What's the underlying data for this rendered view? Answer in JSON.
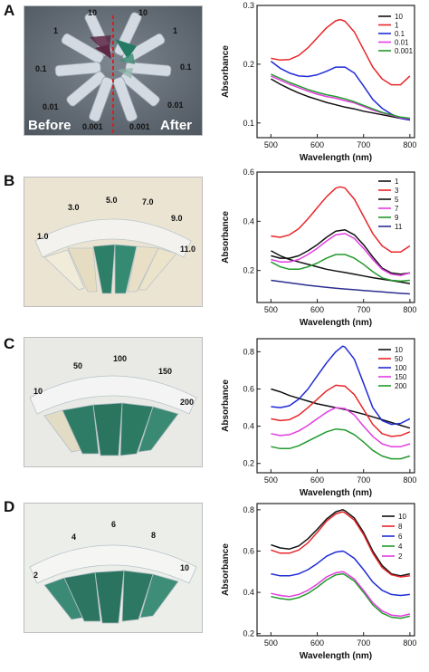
{
  "panels": [
    {
      "letter": "A",
      "photo": {
        "tube_labels": [
          "10",
          "1",
          "0.1",
          "0.01",
          "0.001",
          "10",
          "1",
          "0.1",
          "0.01",
          "0.001"
        ],
        "before_label": "Before",
        "after_label": "After"
      }
    },
    {
      "letter": "B",
      "photo": {
        "tube_labels": [
          "1.0",
          "3.0",
          "5.0",
          "7.0",
          "9.0",
          "11.0"
        ]
      }
    },
    {
      "letter": "C",
      "photo": {
        "tube_labels": [
          "10",
          "50",
          "100",
          "150",
          "200"
        ]
      }
    },
    {
      "letter": "D",
      "photo": {
        "tube_labels": [
          "2",
          "4",
          "6",
          "8",
          "10"
        ]
      }
    }
  ],
  "colors": {
    "black": "#111111",
    "red": "#e8262a",
    "blue": "#1f2bd6",
    "magenta": "#e23de0",
    "green": "#229a2d",
    "navy": "#2b2f8f",
    "solution_green": "#1f7a63",
    "solution_purple": "#5a2140",
    "marker_red": "#d42020"
  },
  "chart_data": [
    {
      "type": "line",
      "xlabel": "Wavelength (nm)",
      "ylabel": "Absorbance",
      "xlim": [
        470,
        810
      ],
      "ylim": [
        0.075,
        0.3
      ],
      "xticks": [
        500,
        600,
        700,
        800
      ],
      "yticks": [
        0.1,
        0.2,
        0.3
      ],
      "legend_position": "top-right",
      "series": [
        {
          "name": "10",
          "color": "#111111",
          "x": [
            500,
            520,
            540,
            560,
            580,
            600,
            620,
            640,
            660,
            680,
            700,
            720,
            740,
            760,
            780,
            800
          ],
          "y": [
            0.175,
            0.166,
            0.158,
            0.151,
            0.145,
            0.14,
            0.135,
            0.131,
            0.127,
            0.124,
            0.12,
            0.117,
            0.114,
            0.111,
            0.108,
            0.105
          ]
        },
        {
          "name": "1",
          "color": "#e8262a",
          "x": [
            500,
            520,
            540,
            560,
            580,
            600,
            620,
            640,
            650,
            660,
            680,
            700,
            720,
            740,
            760,
            780,
            800
          ],
          "y": [
            0.21,
            0.207,
            0.208,
            0.215,
            0.228,
            0.245,
            0.262,
            0.274,
            0.276,
            0.273,
            0.255,
            0.225,
            0.195,
            0.175,
            0.165,
            0.165,
            0.18
          ]
        },
        {
          "name": "0.1",
          "color": "#1f2bd6",
          "x": [
            500,
            520,
            540,
            560,
            580,
            600,
            620,
            640,
            660,
            680,
            700,
            720,
            740,
            760,
            780,
            800
          ],
          "y": [
            0.205,
            0.193,
            0.185,
            0.18,
            0.179,
            0.182,
            0.188,
            0.195,
            0.195,
            0.185,
            0.163,
            0.14,
            0.125,
            0.115,
            0.108,
            0.105
          ]
        },
        {
          "name": "0.01",
          "color": "#e23de0",
          "x": [
            500,
            520,
            540,
            560,
            580,
            600,
            620,
            640,
            660,
            680,
            700,
            720,
            740,
            760,
            780,
            800
          ],
          "y": [
            0.18,
            0.173,
            0.166,
            0.16,
            0.154,
            0.149,
            0.145,
            0.142,
            0.138,
            0.134,
            0.128,
            0.122,
            0.117,
            0.113,
            0.109,
            0.107
          ]
        },
        {
          "name": "0.001",
          "color": "#229a2d",
          "x": [
            500,
            520,
            540,
            560,
            580,
            600,
            620,
            640,
            660,
            680,
            700,
            720,
            740,
            760,
            780,
            800
          ],
          "y": [
            0.183,
            0.176,
            0.169,
            0.163,
            0.157,
            0.152,
            0.148,
            0.145,
            0.141,
            0.136,
            0.13,
            0.124,
            0.118,
            0.114,
            0.11,
            0.108
          ]
        }
      ]
    },
    {
      "type": "line",
      "xlabel": "Wavelength (nm)",
      "ylabel": "Absorbance",
      "xlim": [
        470,
        810
      ],
      "ylim": [
        0.07,
        0.6
      ],
      "xticks": [
        500,
        600,
        700,
        800
      ],
      "yticks": [
        0.2,
        0.4,
        0.6
      ],
      "legend_position": "top-right",
      "series": [
        {
          "name": "1",
          "color": "#111111",
          "x": [
            500,
            520,
            540,
            560,
            580,
            600,
            620,
            640,
            660,
            680,
            700,
            720,
            740,
            760,
            780,
            800
          ],
          "y": [
            0.28,
            0.26,
            0.245,
            0.235,
            0.225,
            0.215,
            0.205,
            0.198,
            0.192,
            0.185,
            0.178,
            0.171,
            0.165,
            0.159,
            0.153,
            0.147
          ]
        },
        {
          "name": "3",
          "color": "#e8262a",
          "x": [
            500,
            520,
            540,
            560,
            580,
            600,
            620,
            640,
            650,
            660,
            680,
            700,
            720,
            740,
            760,
            780,
            800
          ],
          "y": [
            0.34,
            0.335,
            0.345,
            0.37,
            0.41,
            0.455,
            0.5,
            0.535,
            0.54,
            0.535,
            0.49,
            0.42,
            0.35,
            0.3,
            0.275,
            0.275,
            0.3
          ]
        },
        {
          "name": "5",
          "color": "#111111",
          "x": [
            500,
            520,
            540,
            560,
            580,
            600,
            620,
            640,
            660,
            680,
            700,
            720,
            740,
            760,
            780,
            800
          ],
          "y": [
            0.26,
            0.25,
            0.25,
            0.26,
            0.28,
            0.305,
            0.335,
            0.36,
            0.365,
            0.345,
            0.305,
            0.255,
            0.21,
            0.19,
            0.185,
            0.19
          ]
        },
        {
          "name": "7",
          "color": "#e23de0",
          "x": [
            500,
            520,
            540,
            560,
            580,
            600,
            620,
            640,
            660,
            680,
            700,
            720,
            740,
            760,
            780,
            800
          ],
          "y": [
            0.245,
            0.235,
            0.235,
            0.245,
            0.265,
            0.29,
            0.32,
            0.345,
            0.35,
            0.33,
            0.29,
            0.245,
            0.205,
            0.185,
            0.18,
            0.19
          ]
        },
        {
          "name": "9",
          "color": "#229a2d",
          "x": [
            500,
            520,
            540,
            560,
            580,
            600,
            620,
            640,
            660,
            680,
            700,
            720,
            740,
            760,
            780,
            800
          ],
          "y": [
            0.235,
            0.215,
            0.205,
            0.205,
            0.215,
            0.23,
            0.25,
            0.265,
            0.265,
            0.25,
            0.225,
            0.195,
            0.17,
            0.16,
            0.157,
            0.16
          ]
        },
        {
          "name": "11",
          "color": "#2b2f8f",
          "x": [
            500,
            520,
            540,
            560,
            580,
            600,
            620,
            640,
            660,
            680,
            700,
            720,
            740,
            760,
            780,
            800
          ],
          "y": [
            0.16,
            0.155,
            0.15,
            0.145,
            0.14,
            0.136,
            0.132,
            0.128,
            0.125,
            0.122,
            0.119,
            0.116,
            0.113,
            0.11,
            0.107,
            0.105
          ]
        }
      ]
    },
    {
      "type": "line",
      "xlabel": "Wavelength (nm)",
      "ylabel": "Absorbance",
      "xlim": [
        470,
        810
      ],
      "ylim": [
        0.15,
        0.87
      ],
      "xticks": [
        500,
        600,
        700,
        800
      ],
      "yticks": [
        0.2,
        0.4,
        0.6,
        0.8
      ],
      "legend_position": "top-right",
      "series": [
        {
          "name": "10",
          "color": "#111111",
          "x": [
            500,
            520,
            540,
            560,
            580,
            600,
            620,
            640,
            660,
            680,
            700,
            720,
            740,
            760,
            780,
            800
          ],
          "y": [
            0.6,
            0.585,
            0.565,
            0.55,
            0.535,
            0.52,
            0.51,
            0.5,
            0.49,
            0.478,
            0.465,
            0.45,
            0.435,
            0.42,
            0.405,
            0.39
          ]
        },
        {
          "name": "50",
          "color": "#e8262a",
          "x": [
            500,
            520,
            540,
            560,
            580,
            600,
            620,
            640,
            660,
            680,
            700,
            720,
            740,
            760,
            780,
            800
          ],
          "y": [
            0.44,
            0.43,
            0.435,
            0.46,
            0.5,
            0.545,
            0.59,
            0.62,
            0.615,
            0.57,
            0.49,
            0.41,
            0.36,
            0.345,
            0.35,
            0.37
          ]
        },
        {
          "name": "100",
          "color": "#1f2bd6",
          "x": [
            500,
            520,
            540,
            560,
            580,
            600,
            620,
            640,
            655,
            660,
            680,
            700,
            720,
            740,
            760,
            780,
            800
          ],
          "y": [
            0.505,
            0.5,
            0.51,
            0.545,
            0.6,
            0.67,
            0.74,
            0.8,
            0.83,
            0.825,
            0.76,
            0.63,
            0.5,
            0.43,
            0.41,
            0.415,
            0.44
          ]
        },
        {
          "name": "150",
          "color": "#e23de0",
          "x": [
            500,
            520,
            540,
            560,
            580,
            600,
            620,
            640,
            660,
            680,
            700,
            720,
            740,
            760,
            780,
            800
          ],
          "y": [
            0.36,
            0.35,
            0.355,
            0.375,
            0.405,
            0.44,
            0.475,
            0.5,
            0.495,
            0.46,
            0.4,
            0.345,
            0.305,
            0.29,
            0.29,
            0.305
          ]
        },
        {
          "name": "200",
          "color": "#229a2d",
          "x": [
            500,
            520,
            540,
            560,
            580,
            600,
            620,
            640,
            660,
            680,
            700,
            720,
            740,
            760,
            780,
            800
          ],
          "y": [
            0.29,
            0.28,
            0.28,
            0.295,
            0.32,
            0.345,
            0.37,
            0.385,
            0.38,
            0.355,
            0.315,
            0.27,
            0.24,
            0.225,
            0.225,
            0.24
          ]
        }
      ]
    },
    {
      "type": "line",
      "xlabel": "Wavelength (nm)",
      "ylabel": "Absorbance",
      "xlim": [
        470,
        810
      ],
      "ylim": [
        0.19,
        0.83
      ],
      "xticks": [
        500,
        600,
        700,
        800
      ],
      "yticks": [
        0.2,
        0.4,
        0.6,
        0.8
      ],
      "legend_position": "top-right",
      "series": [
        {
          "name": "10",
          "color": "#111111",
          "x": [
            500,
            520,
            540,
            560,
            580,
            600,
            620,
            640,
            655,
            660,
            680,
            700,
            720,
            740,
            760,
            780,
            800
          ],
          "y": [
            0.63,
            0.615,
            0.61,
            0.625,
            0.66,
            0.705,
            0.755,
            0.79,
            0.8,
            0.795,
            0.76,
            0.69,
            0.6,
            0.53,
            0.49,
            0.48,
            0.49
          ]
        },
        {
          "name": "8",
          "color": "#e8262a",
          "x": [
            500,
            520,
            540,
            560,
            580,
            600,
            620,
            640,
            655,
            660,
            680,
            700,
            720,
            740,
            760,
            780,
            800
          ],
          "y": [
            0.605,
            0.59,
            0.59,
            0.605,
            0.64,
            0.69,
            0.745,
            0.78,
            0.79,
            0.785,
            0.75,
            0.68,
            0.59,
            0.52,
            0.485,
            0.475,
            0.48
          ]
        },
        {
          "name": "6",
          "color": "#1f2bd6",
          "x": [
            500,
            520,
            540,
            560,
            580,
            600,
            620,
            640,
            655,
            660,
            680,
            700,
            720,
            740,
            760,
            780,
            800
          ],
          "y": [
            0.49,
            0.48,
            0.48,
            0.49,
            0.51,
            0.54,
            0.575,
            0.595,
            0.6,
            0.595,
            0.565,
            0.51,
            0.45,
            0.41,
            0.39,
            0.385,
            0.39
          ]
        },
        {
          "name": "4",
          "color": "#229a2d",
          "x": [
            500,
            520,
            540,
            560,
            580,
            600,
            620,
            640,
            655,
            660,
            680,
            700,
            720,
            740,
            760,
            780,
            800
          ],
          "y": [
            0.38,
            0.37,
            0.365,
            0.375,
            0.395,
            0.425,
            0.46,
            0.485,
            0.49,
            0.485,
            0.455,
            0.4,
            0.34,
            0.3,
            0.28,
            0.275,
            0.285
          ]
        },
        {
          "name": "2",
          "color": "#e23de0",
          "x": [
            500,
            520,
            540,
            560,
            580,
            600,
            620,
            640,
            655,
            660,
            680,
            700,
            720,
            740,
            760,
            780,
            800
          ],
          "y": [
            0.395,
            0.385,
            0.38,
            0.39,
            0.41,
            0.44,
            0.475,
            0.495,
            0.5,
            0.495,
            0.465,
            0.41,
            0.35,
            0.31,
            0.29,
            0.285,
            0.295
          ]
        }
      ]
    }
  ]
}
